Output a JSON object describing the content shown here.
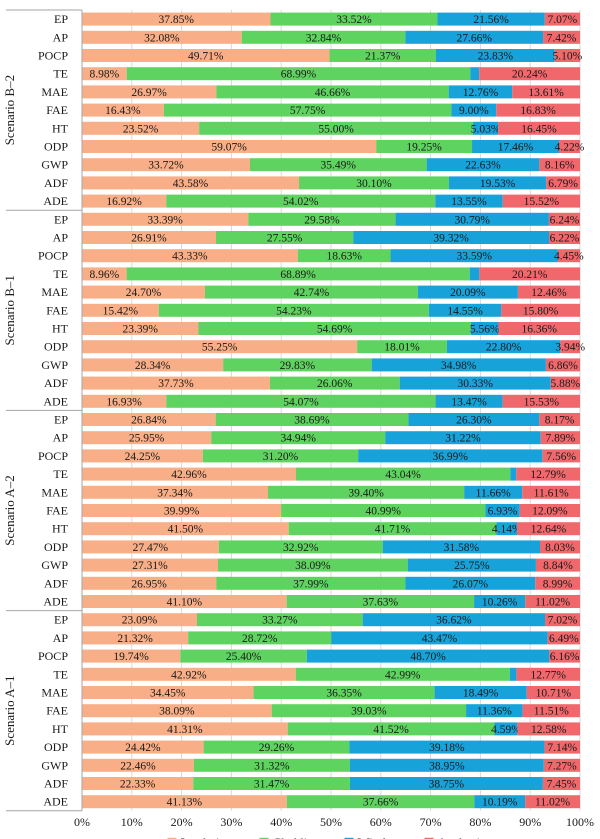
{
  "chart_data": {
    "type": "bar",
    "orientation": "horizontal",
    "stacked": "percent",
    "xlim": [
      0,
      100
    ],
    "xticks": [
      "0%",
      "10%",
      "20%",
      "30%",
      "40%",
      "50%",
      "60%",
      "70%",
      "80%",
      "90%",
      "100%"
    ],
    "categories": [
      "EP",
      "AP",
      "POCP",
      "TE",
      "MAE",
      "FAE",
      "HT",
      "ODP",
      "GWP",
      "ADF",
      "ADE"
    ],
    "series_meta": [
      {
        "name": "Insulation",
        "color": "#F8AE86"
      },
      {
        "name": "Cladding",
        "color": "#5FD35F"
      },
      {
        "name": "Windows",
        "color": "#17A2DA"
      },
      {
        "name": "Anchoring",
        "color": "#F0686C"
      }
    ],
    "legend_position": "bottom",
    "groups": [
      {
        "name": "Scenario B–2",
        "rows": [
          {
            "category": "EP",
            "values": [
              37.85,
              33.52,
              21.56,
              7.07
            ],
            "labels": [
              "37.85%",
              "33.52%",
              "21.56%",
              "7.07%"
            ]
          },
          {
            "category": "AP",
            "values": [
              32.08,
              32.84,
              27.66,
              7.42
            ],
            "labels": [
              "32.08%",
              "32.84%",
              "27.66%",
              "7.42%"
            ]
          },
          {
            "category": "POCP",
            "values": [
              49.71,
              21.37,
              23.83,
              5.1
            ],
            "labels": [
              "49.71%",
              "21.37%",
              "23.83%",
              "5.10%"
            ]
          },
          {
            "category": "TE",
            "values": [
              8.98,
              68.99,
              1.79,
              20.24
            ],
            "labels": [
              "8.98%",
              "68.99%",
              "",
              "20.24%"
            ]
          },
          {
            "category": "MAE",
            "values": [
              26.97,
              46.66,
              12.76,
              13.61
            ],
            "labels": [
              "26.97%",
              "46.66%",
              "12.76%",
              "13.61%"
            ]
          },
          {
            "category": "FAE",
            "values": [
              16.43,
              57.75,
              9.0,
              16.83
            ],
            "labels": [
              "16.43%",
              "57.75%",
              "9.00%",
              "16.83%"
            ]
          },
          {
            "category": "HT",
            "values": [
              23.52,
              55.0,
              5.03,
              16.45
            ],
            "labels": [
              "23.52%",
              "55.00%",
              "5.03%",
              "16.45%"
            ]
          },
          {
            "category": "ODP",
            "values": [
              59.07,
              19.25,
              17.46,
              4.22
            ],
            "labels": [
              "59.07%",
              "19.25%",
              "17.46%",
              "4.22%"
            ]
          },
          {
            "category": "GWP",
            "values": [
              33.72,
              35.49,
              22.63,
              8.16
            ],
            "labels": [
              "33.72%",
              "35.49%",
              "22.63%",
              "8.16%"
            ]
          },
          {
            "category": "ADF",
            "values": [
              43.58,
              30.1,
              19.53,
              6.79
            ],
            "labels": [
              "43.58%",
              "30.10%",
              "19.53%",
              "6.79%"
            ]
          },
          {
            "category": "ADE",
            "values": [
              16.92,
              54.02,
              13.55,
              15.52
            ],
            "labels": [
              "16.92%",
              "54.02%",
              "13.55%",
              "15.52%"
            ]
          }
        ]
      },
      {
        "name": "Scenario B–1",
        "rows": [
          {
            "category": "EP",
            "values": [
              33.39,
              29.58,
              30.79,
              6.24
            ],
            "labels": [
              "33.39%",
              "29.58%",
              "30.79%",
              "6.24%"
            ]
          },
          {
            "category": "AP",
            "values": [
              26.91,
              27.55,
              39.32,
              6.22
            ],
            "labels": [
              "26.91%",
              "27.55%",
              "39.32%",
              "6.22%"
            ]
          },
          {
            "category": "POCP",
            "values": [
              43.33,
              18.63,
              33.59,
              4.45
            ],
            "labels": [
              "43.33%",
              "18.63%",
              "33.59%",
              "4.45%"
            ]
          },
          {
            "category": "TE",
            "values": [
              8.96,
              68.89,
              1.94,
              20.21
            ],
            "labels": [
              "8.96%",
              "68.89%",
              "",
              "20.21%"
            ]
          },
          {
            "category": "MAE",
            "values": [
              24.7,
              42.74,
              20.09,
              12.46
            ],
            "labels": [
              "24.70%",
              "42.74%",
              "20.09%",
              "12.46%"
            ]
          },
          {
            "category": "FAE",
            "values": [
              15.42,
              54.23,
              14.55,
              15.8
            ],
            "labels": [
              "15.42%",
              "54.23%",
              "14.55%",
              "15.80%"
            ]
          },
          {
            "category": "HT",
            "values": [
              23.39,
              54.69,
              5.56,
              16.36
            ],
            "labels": [
              "23.39%",
              "54.69%",
              "5.56%",
              "16.36%"
            ]
          },
          {
            "category": "ODP",
            "values": [
              55.25,
              18.01,
              22.8,
              3.94
            ],
            "labels": [
              "55.25%",
              "18.01%",
              "22.80%",
              "3.94%"
            ]
          },
          {
            "category": "GWP",
            "values": [
              28.34,
              29.83,
              34.98,
              6.86
            ],
            "labels": [
              "28.34%",
              "29.83%",
              "34.98%",
              "6.86%"
            ]
          },
          {
            "category": "ADF",
            "values": [
              37.73,
              26.06,
              30.33,
              5.88
            ],
            "labels": [
              "37.73%",
              "26.06%",
              "30.33%",
              "5.88%"
            ]
          },
          {
            "category": "ADE",
            "values": [
              16.93,
              54.07,
              13.47,
              15.53
            ],
            "labels": [
              "16.93%",
              "54.07%",
              "13.47%",
              "15.53%"
            ]
          }
        ]
      },
      {
        "name": "Scenario A–2",
        "rows": [
          {
            "category": "EP",
            "values": [
              26.84,
              38.69,
              26.3,
              8.17
            ],
            "labels": [
              "26.84%",
              "38.69%",
              "26.30%",
              "8.17%"
            ]
          },
          {
            "category": "AP",
            "values": [
              25.95,
              34.94,
              31.22,
              7.89
            ],
            "labels": [
              "25.95%",
              "34.94%",
              "31.22%",
              "7.89%"
            ]
          },
          {
            "category": "POCP",
            "values": [
              24.25,
              31.2,
              36.99,
              7.56
            ],
            "labels": [
              "24.25%",
              "31.20%",
              "36.99%",
              "7.56%"
            ]
          },
          {
            "category": "TE",
            "values": [
              42.96,
              43.04,
              1.21,
              12.79
            ],
            "labels": [
              "42.96%",
              "43.04%",
              "",
              "12.79%"
            ]
          },
          {
            "category": "MAE",
            "values": [
              37.34,
              39.4,
              11.66,
              11.61
            ],
            "labels": [
              "37.34%",
              "39.40%",
              "11.66%",
              "11.61%"
            ]
          },
          {
            "category": "FAE",
            "values": [
              39.99,
              40.99,
              6.93,
              12.09
            ],
            "labels": [
              "39.99%",
              "40.99%",
              "6.93%",
              "12.09%"
            ]
          },
          {
            "category": "HT",
            "values": [
              41.5,
              41.71,
              4.14,
              12.64
            ],
            "labels": [
              "41.50%",
              "41.71%",
              "4.14%",
              "12.64%"
            ]
          },
          {
            "category": "ODP",
            "values": [
              27.47,
              32.92,
              31.58,
              8.03
            ],
            "labels": [
              "27.47%",
              "32.92%",
              "31.58%",
              "8.03%"
            ]
          },
          {
            "category": "GWP",
            "values": [
              27.31,
              38.09,
              25.75,
              8.84
            ],
            "labels": [
              "27.31%",
              "38.09%",
              "25.75%",
              "8.84%"
            ]
          },
          {
            "category": "ADF",
            "values": [
              26.95,
              37.99,
              26.07,
              8.99
            ],
            "labels": [
              "26.95%",
              "37.99%",
              "26.07%",
              "8.99%"
            ]
          },
          {
            "category": "ADE",
            "values": [
              41.1,
              37.63,
              10.26,
              11.02
            ],
            "labels": [
              "41.10%",
              "37.63%",
              "10.26%",
              "11.02%"
            ]
          }
        ]
      },
      {
        "name": "Scenario A–1",
        "rows": [
          {
            "category": "EP",
            "values": [
              23.09,
              33.27,
              36.62,
              7.02
            ],
            "labels": [
              "23.09%",
              "33.27%",
              "36.62%",
              "7.02%"
            ]
          },
          {
            "category": "AP",
            "values": [
              21.32,
              28.72,
              43.47,
              6.49
            ],
            "labels": [
              "21.32%",
              "28.72%",
              "43.47%",
              "6.49%"
            ]
          },
          {
            "category": "POCP",
            "values": [
              19.74,
              25.4,
              48.7,
              6.16
            ],
            "labels": [
              "19.74%",
              "25.40%",
              "48.70%",
              "6.16%"
            ]
          },
          {
            "category": "TE",
            "values": [
              42.92,
              42.99,
              1.32,
              12.77
            ],
            "labels": [
              "42.92%",
              "42.99%",
              "",
              "12.77%"
            ]
          },
          {
            "category": "MAE",
            "values": [
              34.45,
              36.35,
              18.49,
              10.71
            ],
            "labels": [
              "34.45%",
              "36.35%",
              "18.49%",
              "10.71%"
            ]
          },
          {
            "category": "FAE",
            "values": [
              38.09,
              39.03,
              11.36,
              11.51
            ],
            "labels": [
              "38.09%",
              "39.03%",
              "11.36%",
              "11.51%"
            ]
          },
          {
            "category": "HT",
            "values": [
              41.31,
              41.52,
              4.59,
              12.58
            ],
            "labels": [
              "41.31%",
              "41.52%",
              "4.59%",
              "12.58%"
            ]
          },
          {
            "category": "ODP",
            "values": [
              24.42,
              29.26,
              39.18,
              7.14
            ],
            "labels": [
              "24.42%",
              "29.26%",
              "39.18%",
              "7.14%"
            ]
          },
          {
            "category": "GWP",
            "values": [
              22.46,
              31.32,
              38.95,
              7.27
            ],
            "labels": [
              "22.46%",
              "31.32%",
              "38.95%",
              "7.27%"
            ]
          },
          {
            "category": "ADF",
            "values": [
              22.33,
              31.47,
              38.75,
              7.45
            ],
            "labels": [
              "22.33%",
              "31.47%",
              "38.75%",
              "7.45%"
            ]
          },
          {
            "category": "ADE",
            "values": [
              41.13,
              37.66,
              10.19,
              11.02
            ],
            "labels": [
              "41.13%",
              "37.66%",
              "10.19%",
              "11.02%"
            ]
          }
        ]
      }
    ]
  }
}
